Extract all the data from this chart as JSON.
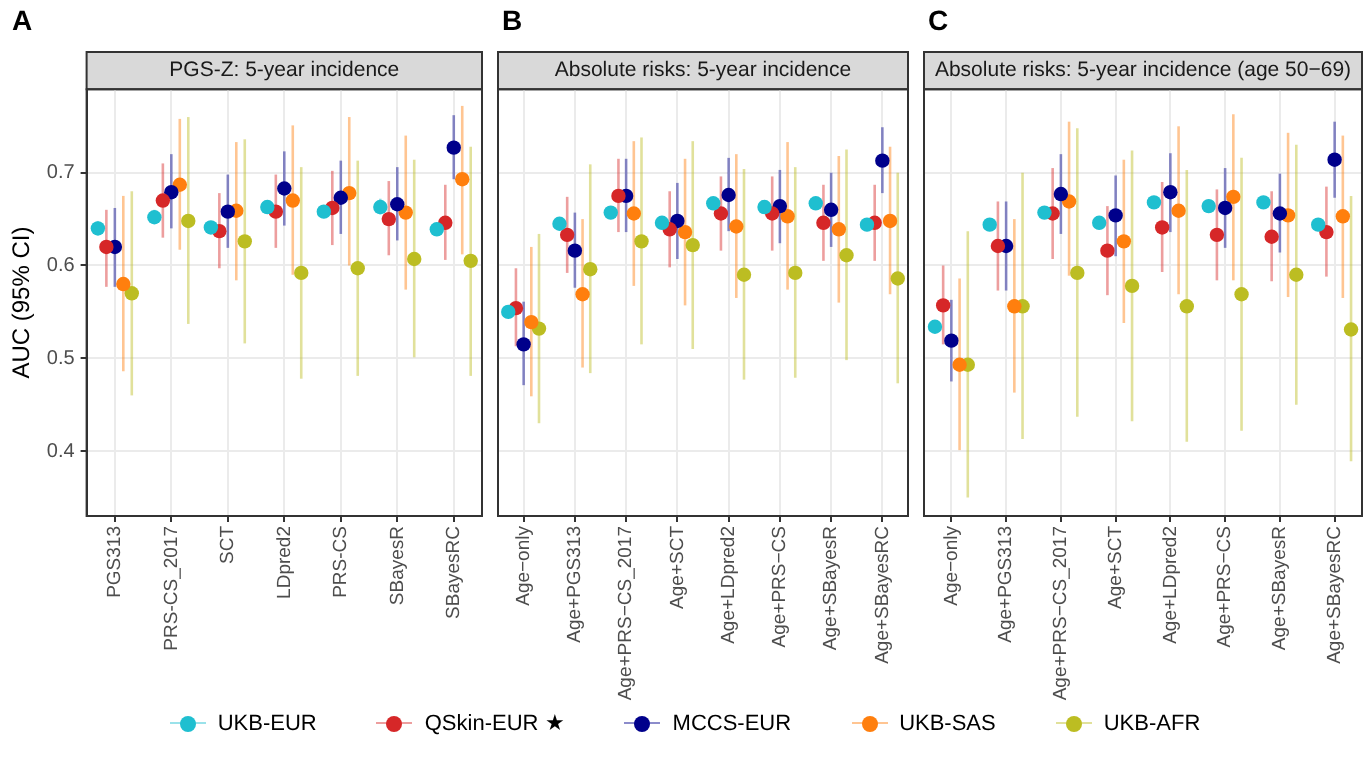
{
  "chart_data": [
    {
      "type": "scatter",
      "title": "PGS-Z: 5-year incidence",
      "annotations": [
        "A"
      ],
      "ylabel": "AUC (95% CI)",
      "categories": [
        "PGS313",
        "PRS-CS_2017",
        "SCT",
        "LDpred2",
        "PRS-CS",
        "SBayesR",
        "SBayesRC"
      ],
      "ylim": [
        0.33,
        0.79
      ],
      "yticks": [
        0.4,
        0.5,
        0.6,
        0.7
      ],
      "grid": true,
      "legend": "bottom",
      "marker": "circle",
      "series": [
        {
          "name": "UKB-EUR",
          "color": "#1fbfd0",
          "values": [
            0.64,
            0.652,
            0.641,
            0.663,
            0.658,
            0.663,
            0.639
          ],
          "errors": [
            [
              0.632,
              0.648
            ],
            [
              0.645,
              0.66
            ],
            [
              0.634,
              0.648
            ],
            [
              0.656,
              0.67
            ],
            [
              0.651,
              0.665
            ],
            [
              0.655,
              0.672
            ],
            [
              0.632,
              0.646
            ]
          ]
        },
        {
          "name": "QSkin-EUR ★",
          "color": "#d62728",
          "values": [
            0.62,
            0.67,
            0.637,
            0.658,
            0.662,
            0.65,
            0.646
          ],
          "errors": [
            [
              0.577,
              0.66
            ],
            [
              0.63,
              0.71
            ],
            [
              0.597,
              0.678
            ],
            [
              0.619,
              0.698
            ],
            [
              0.622,
              0.702
            ],
            [
              0.611,
              0.691
            ],
            [
              0.606,
              0.687
            ]
          ]
        },
        {
          "name": "MCCS-EUR",
          "color": "#00008b",
          "values": [
            0.62,
            0.679,
            0.658,
            0.683,
            0.673,
            0.666,
            0.727
          ],
          "errors": [
            [
              0.577,
              0.662
            ],
            [
              0.64,
              0.72
            ],
            [
              0.619,
              0.698
            ],
            [
              0.643,
              0.723
            ],
            [
              0.634,
              0.713
            ],
            [
              0.627,
              0.706
            ],
            [
              0.693,
              0.762
            ]
          ]
        },
        {
          "name": "UKB-SAS",
          "color": "#ff7f0e",
          "values": [
            0.58,
            0.687,
            0.659,
            0.67,
            0.678,
            0.657,
            0.693
          ],
          "errors": [
            [
              0.486,
              0.675
            ],
            [
              0.617,
              0.758
            ],
            [
              0.584,
              0.733
            ],
            [
              0.59,
              0.751
            ],
            [
              0.6,
              0.76
            ],
            [
              0.574,
              0.74
            ],
            [
              0.612,
              0.772
            ]
          ]
        },
        {
          "name": "UKB-AFR",
          "color": "#bcbd22",
          "values": [
            0.57,
            0.648,
            0.626,
            0.592,
            0.597,
            0.607,
            0.605
          ],
          "errors": [
            [
              0.46,
              0.68
            ],
            [
              0.537,
              0.76
            ],
            [
              0.516,
              0.736
            ],
            [
              0.478,
              0.706
            ],
            [
              0.481,
              0.713
            ],
            [
              0.501,
              0.714
            ],
            [
              0.481,
              0.728
            ]
          ]
        }
      ]
    },
    {
      "type": "scatter",
      "title": "Absolute risks: 5-year incidence",
      "annotations": [
        "B"
      ],
      "categories": [
        "Age−only",
        "Age+PGS313",
        "Age+PRS−CS_2017",
        "Age+SCT",
        "Age+LDpred2",
        "Age+PRS−CS",
        "Age+SBayesR",
        "Age+SBayesRC"
      ],
      "ylim": [
        0.33,
        0.79
      ],
      "yticks": [
        0.4,
        0.5,
        0.6,
        0.7
      ],
      "tick_labels": "x",
      "grid": true,
      "marker": "circle",
      "series": [
        {
          "color": "#1fbfd0",
          "values": [
            0.55,
            0.645,
            0.657,
            0.646,
            0.667,
            0.663,
            0.667,
            0.644
          ],
          "errors": [
            [
              0.544,
              0.556
            ],
            [
              0.638,
              0.652
            ],
            [
              0.65,
              0.664
            ],
            [
              0.639,
              0.653
            ],
            [
              0.66,
              0.674
            ],
            [
              0.656,
              0.67
            ],
            [
              0.66,
              0.674
            ],
            [
              0.637,
              0.651
            ]
          ]
        },
        {
          "color": "#d62728",
          "values": [
            0.554,
            0.633,
            0.675,
            0.639,
            0.656,
            0.656,
            0.646,
            0.646
          ],
          "errors": [
            [
              0.513,
              0.597
            ],
            [
              0.592,
              0.674
            ],
            [
              0.636,
              0.715
            ],
            [
              0.598,
              0.68
            ],
            [
              0.616,
              0.696
            ],
            [
              0.616,
              0.696
            ],
            [
              0.605,
              0.687
            ],
            [
              0.605,
              0.687
            ]
          ]
        },
        {
          "color": "#00008b",
          "values": [
            0.515,
            0.616,
            0.675,
            0.648,
            0.676,
            0.664,
            0.66,
            0.713
          ],
          "errors": [
            [
              0.471,
              0.561
            ],
            [
              0.576,
              0.657
            ],
            [
              0.636,
              0.715
            ],
            [
              0.607,
              0.689
            ],
            [
              0.637,
              0.716
            ],
            [
              0.624,
              0.703
            ],
            [
              0.62,
              0.7
            ],
            [
              0.678,
              0.749
            ]
          ]
        },
        {
          "color": "#ff7f0e",
          "values": [
            0.539,
            0.569,
            0.656,
            0.636,
            0.642,
            0.653,
            0.639,
            0.648
          ],
          "errors": [
            [
              0.459,
              0.62
            ],
            [
              0.49,
              0.65
            ],
            [
              0.578,
              0.734
            ],
            [
              0.557,
              0.715
            ],
            [
              0.565,
              0.72
            ],
            [
              0.574,
              0.733
            ],
            [
              0.56,
              0.718
            ],
            [
              0.569,
              0.728
            ]
          ]
        },
        {
          "color": "#bcbd22",
          "values": [
            0.532,
            0.596,
            0.626,
            0.622,
            0.59,
            0.592,
            0.611,
            0.586
          ],
          "errors": [
            [
              0.43,
              0.634
            ],
            [
              0.484,
              0.709
            ],
            [
              0.515,
              0.738
            ],
            [
              0.51,
              0.734
            ],
            [
              0.477,
              0.704
            ],
            [
              0.479,
              0.706
            ],
            [
              0.498,
              0.725
            ],
            [
              0.473,
              0.7
            ]
          ]
        }
      ]
    },
    {
      "type": "scatter",
      "title": "Absolute risks: 5-year incidence (age 50−69)",
      "annotations": [
        "C"
      ],
      "categories": [
        "Age−only",
        "Age+PGS313",
        "Age+PRS−CS_2017",
        "Age+SCT",
        "Age+LDpred2",
        "Age+PRS−CS",
        "Age+SBayesR",
        "Age+SBayesRC"
      ],
      "ylim": [
        0.33,
        0.79
      ],
      "yticks": [
        0.4,
        0.5,
        0.6,
        0.7
      ],
      "tick_labels": "x",
      "grid": true,
      "marker": "circle",
      "series": [
        {
          "color": "#1fbfd0",
          "values": [
            0.534,
            0.644,
            0.657,
            0.646,
            0.668,
            0.664,
            0.668,
            0.644
          ],
          "errors": [
            [
              0.527,
              0.541
            ],
            [
              0.637,
              0.651
            ],
            [
              0.65,
              0.664
            ],
            [
              0.639,
              0.653
            ],
            [
              0.661,
              0.675
            ],
            [
              0.657,
              0.671
            ],
            [
              0.661,
              0.675
            ],
            [
              0.637,
              0.651
            ]
          ]
        },
        {
          "color": "#d62728",
          "values": [
            0.557,
            0.621,
            0.656,
            0.616,
            0.641,
            0.633,
            0.631,
            0.636
          ],
          "errors": [
            [
              0.515,
              0.6
            ],
            [
              0.573,
              0.669
            ],
            [
              0.607,
              0.705
            ],
            [
              0.568,
              0.664
            ],
            [
              0.593,
              0.69
            ],
            [
              0.584,
              0.682
            ],
            [
              0.583,
              0.68
            ],
            [
              0.588,
              0.685
            ]
          ]
        },
        {
          "color": "#00008b",
          "values": [
            0.519,
            0.621,
            0.677,
            0.654,
            0.679,
            0.662,
            0.656,
            0.714
          ],
          "errors": [
            [
              0.475,
              0.563
            ],
            [
              0.573,
              0.669
            ],
            [
              0.634,
              0.72
            ],
            [
              0.61,
              0.697
            ],
            [
              0.636,
              0.721
            ],
            [
              0.619,
              0.705
            ],
            [
              0.614,
              0.699
            ],
            [
              0.673,
              0.755
            ]
          ]
        },
        {
          "color": "#ff7f0e",
          "values": [
            0.493,
            0.556,
            0.669,
            0.626,
            0.659,
            0.674,
            0.654,
            0.653
          ],
          "errors": [
            [
              0.401,
              0.586
            ],
            [
              0.463,
              0.65
            ],
            [
              0.589,
              0.755
            ],
            [
              0.538,
              0.714
            ],
            [
              0.569,
              0.75
            ],
            [
              0.584,
              0.763
            ],
            [
              0.566,
              0.743
            ],
            [
              0.565,
              0.74
            ]
          ]
        },
        {
          "color": "#bcbd22",
          "values": [
            0.493,
            0.556,
            0.592,
            0.578,
            0.556,
            0.569,
            0.59,
            0.531
          ],
          "errors": [
            [
              0.35,
              0.637
            ],
            [
              0.413,
              0.7
            ],
            [
              0.437,
              0.748
            ],
            [
              0.432,
              0.724
            ],
            [
              0.41,
              0.703
            ],
            [
              0.422,
              0.716
            ],
            [
              0.45,
              0.73
            ],
            [
              0.389,
              0.675
            ]
          ]
        }
      ]
    }
  ]
}
